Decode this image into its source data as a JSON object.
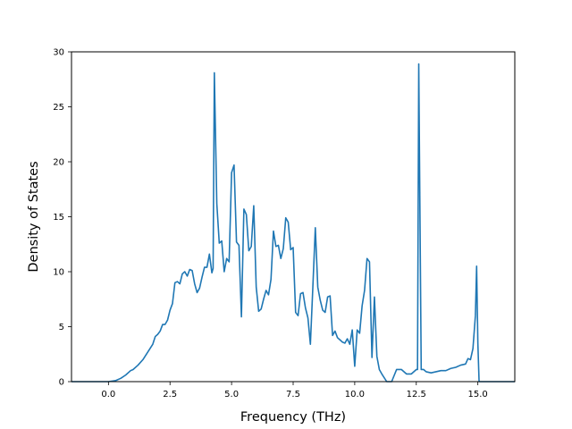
{
  "chart_data": {
    "type": "line",
    "title": "",
    "xlabel": "Frequency (THz)",
    "ylabel": "Density of States",
    "xlim": [
      -1.5,
      16.5
    ],
    "ylim": [
      0,
      30
    ],
    "grid": false,
    "legend": "none",
    "line_color": "#1f77b4",
    "xticks": [
      0.0,
      2.5,
      5.0,
      7.5,
      10.0,
      12.5,
      15.0
    ],
    "xtick_labels": [
      "0.0",
      "2.5",
      "5.0",
      "7.5",
      "10.0",
      "12.5",
      "15.0"
    ],
    "yticks": [
      0,
      5,
      10,
      15,
      20,
      25,
      30
    ],
    "ytick_labels": [
      "0",
      "5",
      "10",
      "15",
      "20",
      "25",
      "30"
    ],
    "series": [
      {
        "x": [
          -1.5,
          -0.5,
          0.0,
          0.3,
          0.5,
          0.7,
          0.9,
          1.0,
          1.2,
          1.4,
          1.6,
          1.8,
          1.9,
          2.0,
          2.1,
          2.2,
          2.3,
          2.4,
          2.5,
          2.6,
          2.7,
          2.8,
          2.9,
          3.0,
          3.1,
          3.2,
          3.3,
          3.4,
          3.5,
          3.6,
          3.7,
          3.8,
          3.9,
          4.0,
          4.1,
          4.2,
          4.25,
          4.3,
          4.4,
          4.5,
          4.6,
          4.7,
          4.8,
          4.9,
          5.0,
          5.1,
          5.2,
          5.3,
          5.4,
          5.5,
          5.6,
          5.7,
          5.8,
          5.9,
          6.0,
          6.1,
          6.2,
          6.3,
          6.4,
          6.5,
          6.6,
          6.7,
          6.8,
          6.9,
          7.0,
          7.1,
          7.2,
          7.3,
          7.4,
          7.5,
          7.6,
          7.7,
          7.8,
          7.9,
          8.0,
          8.1,
          8.2,
          8.3,
          8.4,
          8.5,
          8.6,
          8.7,
          8.8,
          8.9,
          9.0,
          9.1,
          9.2,
          9.3,
          9.4,
          9.5,
          9.6,
          9.7,
          9.8,
          9.9,
          10.0,
          10.1,
          10.2,
          10.3,
          10.4,
          10.5,
          10.6,
          10.7,
          10.8,
          10.9,
          11.0,
          11.1,
          11.3,
          11.5,
          11.7,
          11.9,
          12.1,
          12.3,
          12.5,
          12.55,
          12.6,
          12.7,
          12.8,
          12.9,
          13.1,
          13.3,
          13.5,
          13.7,
          13.9,
          14.1,
          14.3,
          14.5,
          14.6,
          14.7,
          14.8,
          14.9,
          14.95,
          15.0,
          15.05,
          15.5,
          16.5
        ],
        "y": [
          0.0,
          0.0,
          0.0,
          0.1,
          0.3,
          0.6,
          1.0,
          1.1,
          1.5,
          2.0,
          2.7,
          3.4,
          4.1,
          4.3,
          4.6,
          5.2,
          5.2,
          5.6,
          6.5,
          7.1,
          9.0,
          9.1,
          8.9,
          9.8,
          10.0,
          9.6,
          10.2,
          10.1,
          8.9,
          8.1,
          8.5,
          9.5,
          10.4,
          10.4,
          11.6,
          9.9,
          10.3,
          28.1,
          16.2,
          12.6,
          12.8,
          10.0,
          11.2,
          10.9,
          19.0,
          19.7,
          12.7,
          12.4,
          5.9,
          15.7,
          15.2,
          11.9,
          12.3,
          16.0,
          8.6,
          6.4,
          6.6,
          7.5,
          8.3,
          7.9,
          9.3,
          13.7,
          12.3,
          12.4,
          11.2,
          12.1,
          14.9,
          14.5,
          12.0,
          12.2,
          6.3,
          6.0,
          8.0,
          8.1,
          6.7,
          5.8,
          3.4,
          8.6,
          14.0,
          8.6,
          7.4,
          6.5,
          6.3,
          7.7,
          7.8,
          4.2,
          4.6,
          4.0,
          3.8,
          3.6,
          3.5,
          3.9,
          3.4,
          4.7,
          1.4,
          4.7,
          4.4,
          6.9,
          8.3,
          11.2,
          10.9,
          2.2,
          7.7,
          2.3,
          1.1,
          0.7,
          0.0,
          0.0,
          1.1,
          1.1,
          0.7,
          0.7,
          1.1,
          1.1,
          28.9,
          1.1,
          1.1,
          0.9,
          0.8,
          0.9,
          1.0,
          1.0,
          1.2,
          1.3,
          1.5,
          1.6,
          2.1,
          2.0,
          3.0,
          6.0,
          10.5,
          3.5,
          0.0,
          0.0,
          0.0
        ]
      }
    ]
  }
}
